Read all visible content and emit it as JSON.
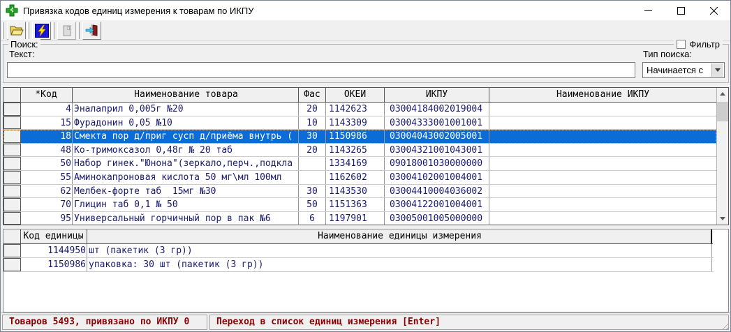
{
  "window": {
    "title": "Привязка кодов единиц измерения к товарам по ИКПУ",
    "controls": {
      "minimize": "minimize",
      "maximize": "maximize",
      "close": "close"
    }
  },
  "toolbar": {
    "buttons": [
      {
        "name": "open",
        "icon": "open-folder-icon",
        "enabled": true
      },
      {
        "name": "refresh",
        "icon": "lightning-icon",
        "enabled": true
      },
      {
        "name": "print",
        "icon": "document-icon",
        "enabled": false
      },
      {
        "name": "exit",
        "icon": "exit-door-icon",
        "enabled": true
      }
    ]
  },
  "search": {
    "group_label": "Поиск:",
    "filter_label": "Фильтр",
    "filter_checked": false,
    "text_label": "Текст:",
    "text_value": "",
    "type_label": "Тип поиска:",
    "type_value": "Начинается с"
  },
  "main_grid": {
    "columns": [
      "*Код",
      "Наименование товара",
      "Фас",
      "ОКЕИ",
      "ИКПУ",
      "Наименование ИКПУ"
    ],
    "selected_index": 2,
    "rows": [
      {
        "code": "4",
        "name": "Эналаприл 0,005г №20",
        "fas": "20",
        "okei": "1142623",
        "ikpu": "03004184002019004",
        "ikpu_name": ""
      },
      {
        "code": "15",
        "name": "Фурадонин 0,05 №10",
        "fas": "10",
        "okei": "1143309",
        "ikpu": "03004333001001001",
        "ikpu_name": ""
      },
      {
        "code": "18",
        "name": "Смекта пор д/приг сусп д/приёма внутрь (",
        "fas": "30",
        "okei": "1150986",
        "ikpu": "03004043002005001",
        "ikpu_name": ""
      },
      {
        "code": "48",
        "name": "Ко-тримоксазол 0,48г № 20 таб",
        "fas": "20",
        "okei": "1143265",
        "ikpu": "03004321001043001",
        "ikpu_name": ""
      },
      {
        "code": "50",
        "name": "Набор гинек.\"Юнона\"(зеркало,перч.,подкла",
        "fas": "",
        "okei": "1334169",
        "ikpu": "09018001030000000",
        "ikpu_name": ""
      },
      {
        "code": "55",
        "name": "Аминокапроновая кислота 50 мг\\мл 100мл",
        "fas": "",
        "okei": "1162602",
        "ikpu": "03004102001004001",
        "ikpu_name": ""
      },
      {
        "code": "62",
        "name": "Мелбек-форте таб  15мг №30",
        "fas": "30",
        "okei": "1143530",
        "ikpu": "03004410004036002",
        "ikpu_name": ""
      },
      {
        "code": "70",
        "name": "Глицин таб 0,1 № 50",
        "fas": "50",
        "okei": "1151363",
        "ikpu": "03004122001004001",
        "ikpu_name": ""
      },
      {
        "code": "95",
        "name": "Универсальный горчичный пор в пак №6",
        "fas": "6",
        "okei": "1197901",
        "ikpu": "03005001005000000",
        "ikpu_name": ""
      }
    ]
  },
  "units_grid": {
    "columns": [
      "Код единицы",
      "Наименование единицы измерения"
    ],
    "rows": [
      {
        "code": "1144950",
        "name": "шт (пакетик (3 гр))"
      },
      {
        "code": "1150986",
        "name": "упаковка: 30 шт (пакетик (3 гр))"
      }
    ]
  },
  "status_bar": {
    "left": "Товаров 5493, привязано по ИКПУ 0",
    "right": "Переход в список единиц измерения [Enter]"
  },
  "colors": {
    "selection": "#0b6bd7",
    "selection_focus_dots": "#ffa126",
    "status_text": "#8b0000",
    "grid_text": "#1a1a70"
  }
}
